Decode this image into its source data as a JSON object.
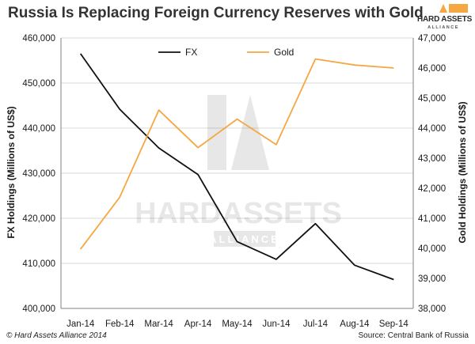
{
  "header": {
    "title": "Russia Is Replacing Foreign Currency Reserves with Gold",
    "logo_main": "HARD ASSETS",
    "logo_sub": "ALLIANCE"
  },
  "footer": {
    "copyright": "© Hard Assets Alliance 2014",
    "source": "Source: Central Bank of Russia"
  },
  "watermark": {
    "main": "HARDASSETS",
    "sub": "ALLIANCE"
  },
  "colors": {
    "fx": "#111111",
    "gold": "#f5a742",
    "grid": "#d9d9d9",
    "logo_accent": "#f5a742"
  },
  "chart_data": {
    "type": "line",
    "categories": [
      "Jan-14",
      "Feb-14",
      "Mar-14",
      "Apr-14",
      "May-14",
      "Jun-14",
      "Jul-14",
      "Aug-14",
      "Sep-14"
    ],
    "series": [
      {
        "name": "FX",
        "axis": "left",
        "values": [
          456500,
          444200,
          435600,
          429700,
          414800,
          410900,
          418800,
          409600,
          406400
        ]
      },
      {
        "name": "Gold",
        "axis": "right",
        "values": [
          39970,
          41700,
          44600,
          43350,
          44300,
          43450,
          46300,
          46100,
          46000
        ]
      }
    ],
    "y_left": {
      "label": "FX Holdings (Millions of US$)",
      "min": 400000,
      "max": 460000,
      "step": 10000,
      "tick_labels": [
        "400,000",
        "410,000",
        "420,000",
        "430,000",
        "440,000",
        "450,000",
        "460,000"
      ]
    },
    "y_right": {
      "label": "Gold Holdings (Millions of US$)",
      "min": 38000,
      "max": 47000,
      "step": 1000,
      "tick_labels": [
        "38,000",
        "39,000",
        "40,000",
        "41,000",
        "42,000",
        "43,000",
        "44,000",
        "45,000",
        "46,000",
        "47,000"
      ]
    },
    "grid": true,
    "legend": "top-center"
  }
}
